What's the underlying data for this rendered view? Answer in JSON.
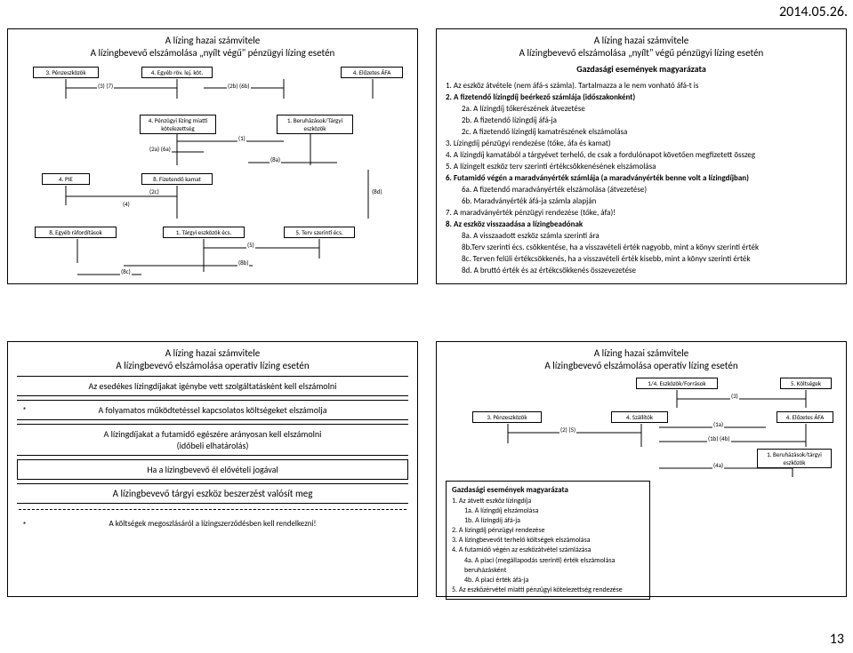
{
  "date": "2014.05.26.",
  "pagenum": "13",
  "p1": {
    "title1": "A lízing hazai számvitele",
    "title2": "A lízingbevevő elszámolása „nyílt végű\" pénzügyi lízing esetén",
    "nodes": {
      "n3penz": "3. Pénzeszközök",
      "n4egyrov": "4. Egyéb röv. lej. köt.",
      "n4elozafa": "4. Előzetes ÁFA",
      "n4penzlizkot": "4. Pénzügyi lízing miatti kötelezettség",
      "n1beruh": "1. Beruházások/Tárgyi eszközök",
      "n4pie": "4. PIE",
      "n8fizkamat": "8. Fizetendő kamat",
      "n8egyraf": "8. Egyéb ráfordítások",
      "n1targyecs": "1. Tárgyi eszközök écs.",
      "n5tervecs": "5. Terv szerinti écs."
    },
    "labels": {
      "l37": "(3) (7)",
      "l2b6b": "(2b) (6b)",
      "l2a6a": "(2a) (6a)",
      "l1": "(1)",
      "l8a": "(8a)",
      "l4": "(4)",
      "l2c": "(2c)",
      "l8d": "(8d)",
      "l5": "(5)",
      "l8b": "(8b)",
      "l8c": "(8c)"
    }
  },
  "p2": {
    "title1": "A lízing hazai számvitele",
    "title2": "A lízingbevevő elszámolása „nyílt\" végű pénzügyi lízing esetén",
    "subtitle": "Gazdasági események magyarázata",
    "lines": [
      {
        "lv": 1,
        "b": false,
        "t": "1. Az eszköz átvétele (nem áfá-s számla). Tartalmazza a le nem vonható áfá-t is"
      },
      {
        "lv": 1,
        "b": true,
        "t": "2. A fizetendő lízingdíj beérkező számlája (időszakonként)"
      },
      {
        "lv": 2,
        "b": false,
        "t": "2a. A lízingdíj tőkerészének átvezetése"
      },
      {
        "lv": 2,
        "b": false,
        "t": "2b. A fizetendő lízingdíj áfá-ja"
      },
      {
        "lv": 2,
        "b": false,
        "t": "2c. A fizetendő lízingdíj kamatrészének elszámolása"
      },
      {
        "lv": 1,
        "b": false,
        "t": "3. Lízingdíj pénzügyi rendezése (tőke, áfa és kamat)"
      },
      {
        "lv": 1,
        "b": false,
        "t": "4. A lízingdíj kamatából a tárgyévet terhelő, de csak a fordulónapot követően megfizetett összeg"
      },
      {
        "lv": 1,
        "b": false,
        "t": "5. A lízingelt eszköz terv szerinti értékcsökkenésének elszámolása"
      },
      {
        "lv": 1,
        "b": true,
        "t": "6. Futamidő végén a maradványérték számlája (a maradványérték benne volt a lízingdíjban)"
      },
      {
        "lv": 2,
        "b": false,
        "t": "6a. A fizetendő maradványérték elszámolása (átvezetése)"
      },
      {
        "lv": 2,
        "b": false,
        "t": "6b. Maradványérték áfá-ja számla alapján"
      },
      {
        "lv": 1,
        "b": false,
        "t": "7. A maradványérték pénzügyi rendezése (tőke, áfa)!"
      },
      {
        "lv": 1,
        "b": true,
        "t": "8. Az eszköz visszaadása a lízingbeadónak"
      },
      {
        "lv": 2,
        "b": false,
        "t": "8a. A visszaadott eszköz számla szerinti ára"
      },
      {
        "lv": 2,
        "b": false,
        "t": "8b.Terv szerinti écs. csökkentése, ha a visszavételi érték nagyobb, mint a könyv szerinti érték"
      },
      {
        "lv": 2,
        "b": false,
        "t": "8c. Terven felüli értékcsökkenés, ha a visszavételi érték kisebb, mint a könyv szerinti érték"
      },
      {
        "lv": 2,
        "b": false,
        "t": "8d. A bruttó érték és az értékcsökkenés összevezetése"
      }
    ]
  },
  "p3": {
    "title1": "A lízing hazai számvitele",
    "title2": "A lízingbevevő elszámolása operatív lízing esetén",
    "rows": {
      "r1": "Az esedékes lízingdíjakat igénybe vett szolgáltatásként kell elszámolni",
      "r2": "A folyamatos működtetéssel kapcsolatos költségeket elszámolja",
      "r3a": "A lízingdíjakat a futamidő egészére arányosan kell elszámolni",
      "r3b": "(időbeli elhatárolás)",
      "r4": "Ha a lízingbevevő él elővételi jogával",
      "r5": "A lízingbevevő tárgyi eszköz beszerzést valósít meg",
      "r6": "A költségek megoszlásáról a lízingszerződésben kell rendelkezni!",
      "star": "*"
    }
  },
  "p4": {
    "title1": "A lízing hazai számvitele",
    "title2": "A lízingbevevő elszámolása operatív lízing esetén",
    "nodes": {
      "n14eszk": "1/4. Eszközök/Források",
      "n5kolt": "5. Költségek",
      "n3penz": "3. Pénzeszközök",
      "n4szall": "4. Szállítók",
      "n4elozafa": "4. Előzetes ÁFA",
      "n1beruh": "1. Beruházások/tárgyi eszközök"
    },
    "labels": {
      "l3": "(3)",
      "l25": "(2) (5)",
      "l1a": "(1a)",
      "l1b4b": "(1b) (4b)",
      "l4a": "(4a)"
    },
    "exp_title": "Gazdasági események magyarázata",
    "lines": [
      {
        "lv": 1,
        "b": true,
        "t": "1. Az átvett eszköz lízingdíja"
      },
      {
        "lv": 2,
        "b": false,
        "t": "1a. A lízingdíj elszámolása"
      },
      {
        "lv": 2,
        "b": false,
        "t": "1b. A lízingdíj áfá-ja"
      },
      {
        "lv": 1,
        "b": false,
        "t": "2. A lízingdíj pénzügyi rendezése"
      },
      {
        "lv": 1,
        "b": false,
        "t": "3. A lízingbevevőt terhelő költségek elszámolása"
      },
      {
        "lv": 1,
        "b": true,
        "t": "4. A futamidő végén az eszközátvétel számlázása"
      },
      {
        "lv": 2,
        "b": false,
        "t": "4a. A piaci (megállapodás szerinti) érték elszámolása beruházásként"
      },
      {
        "lv": 2,
        "b": false,
        "t": "4b. A piaci érték áfá-ja"
      },
      {
        "lv": 1,
        "b": false,
        "t": "5. Az eszközérvétel miatti pénzügyi kötelezettség rendezése"
      }
    ]
  }
}
